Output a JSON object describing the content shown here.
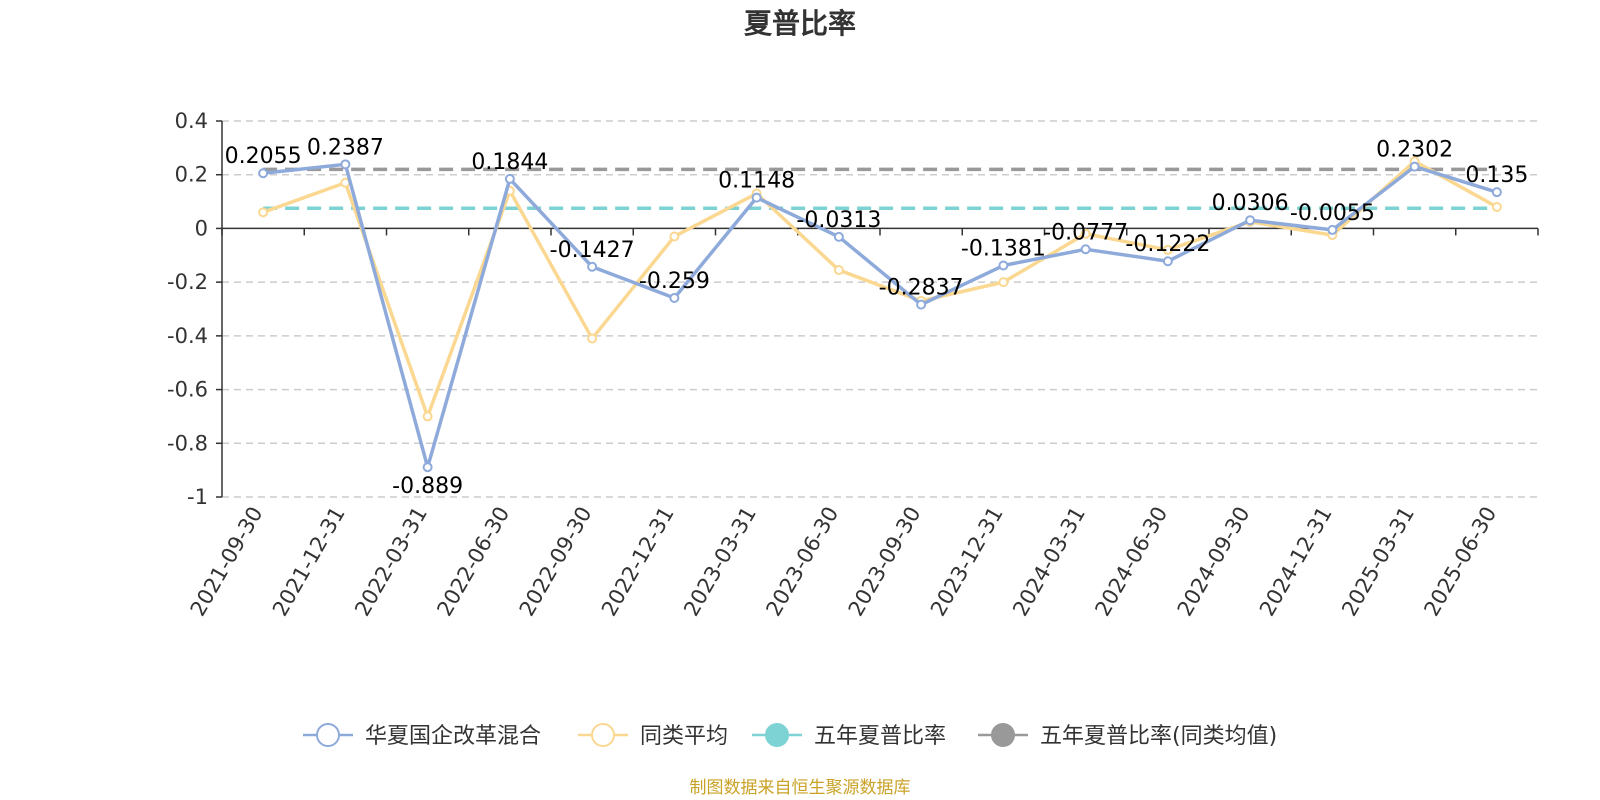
{
  "chart_data": {
    "type": "line",
    "title": "夏普比率",
    "categories": [
      "2021-09-30",
      "2021-12-31",
      "2022-03-31",
      "2022-06-30",
      "2022-09-30",
      "2022-12-31",
      "2023-03-31",
      "2023-06-30",
      "2023-09-30",
      "2023-12-31",
      "2024-03-31",
      "2024-06-30",
      "2024-09-30",
      "2024-12-31",
      "2025-03-31",
      "2025-06-30"
    ],
    "ylim": [
      -1,
      0.4
    ],
    "yticks": [
      0.4,
      0.2,
      0,
      -0.2,
      -0.4,
      -0.6,
      -0.8,
      -1
    ],
    "ytick_labels": [
      "0.4",
      "0.2",
      "0",
      "-0.2",
      "-0.4",
      "-0.6",
      "-0.8",
      "-1"
    ],
    "grid": true,
    "legend_position": "bottom",
    "series": [
      {
        "name": "华夏国企改革混合",
        "color": "#8eaadb",
        "values": [
          0.2055,
          0.2387,
          -0.889,
          0.1844,
          -0.1427,
          -0.259,
          0.1148,
          -0.0313,
          -0.2837,
          -0.1381,
          -0.0777,
          -0.1222,
          0.0306,
          -0.0055,
          0.2302,
          0.135
        ],
        "labels": [
          "0.2055",
          "0.2387",
          "-0.889",
          "0.1844",
          "-0.1427",
          "-0.259",
          "0.1148",
          "-0.0313",
          "-0.2837",
          "-0.1381",
          "-0.0777",
          "-0.1222",
          "0.0306",
          "-0.0055",
          "0.2302",
          "0.135"
        ]
      },
      {
        "name": "同类平均",
        "color": "#fbd891",
        "values": [
          0.06,
          0.17,
          -0.7,
          0.14,
          -0.41,
          -0.03,
          0.13,
          -0.155,
          -0.27,
          -0.2,
          -0.02,
          -0.08,
          0.025,
          -0.025,
          0.25,
          0.08
        ]
      },
      {
        "name": "五年夏普比率",
        "color": "#7dd3d3",
        "constant": 0.075
      },
      {
        "name": "五年夏普比率(同类均值)",
        "color": "#999999",
        "constant": 0.22
      }
    ],
    "source_note": "制图数据来自恒生聚源数据库"
  }
}
